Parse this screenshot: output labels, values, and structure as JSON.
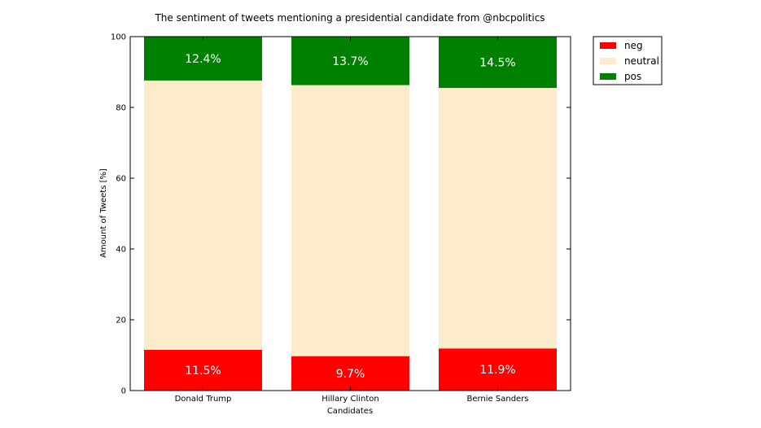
{
  "chart_data": {
    "type": "bar",
    "stacked": true,
    "title": "The sentiment of tweets mentioning a presidential candidate from @nbcpolitics",
    "xlabel": "Candidates",
    "ylabel": "Amount of Tweets [%]",
    "ylim": [
      0,
      100
    ],
    "yticks": [
      "0",
      "20",
      "40",
      "60",
      "80",
      "100"
    ],
    "categories": [
      "Donald Trump",
      "Hillary Clinton",
      "Bernie Sanders"
    ],
    "series": [
      {
        "name": "neg",
        "color": "#ff0000",
        "values": [
          11.5,
          9.7,
          11.9
        ],
        "labels": [
          "11.5%",
          "9.7%",
          "11.9%"
        ]
      },
      {
        "name": "neutral",
        "color": "#fdeccc",
        "values": [
          76.1,
          76.6,
          73.6
        ],
        "labels": []
      },
      {
        "name": "pos",
        "color": "#008000",
        "values": [
          12.4,
          13.7,
          14.5
        ],
        "labels": [
          "12.4%",
          "13.7%",
          "14.5%"
        ]
      }
    ],
    "legend": "outside-top-right",
    "grid": false
  }
}
